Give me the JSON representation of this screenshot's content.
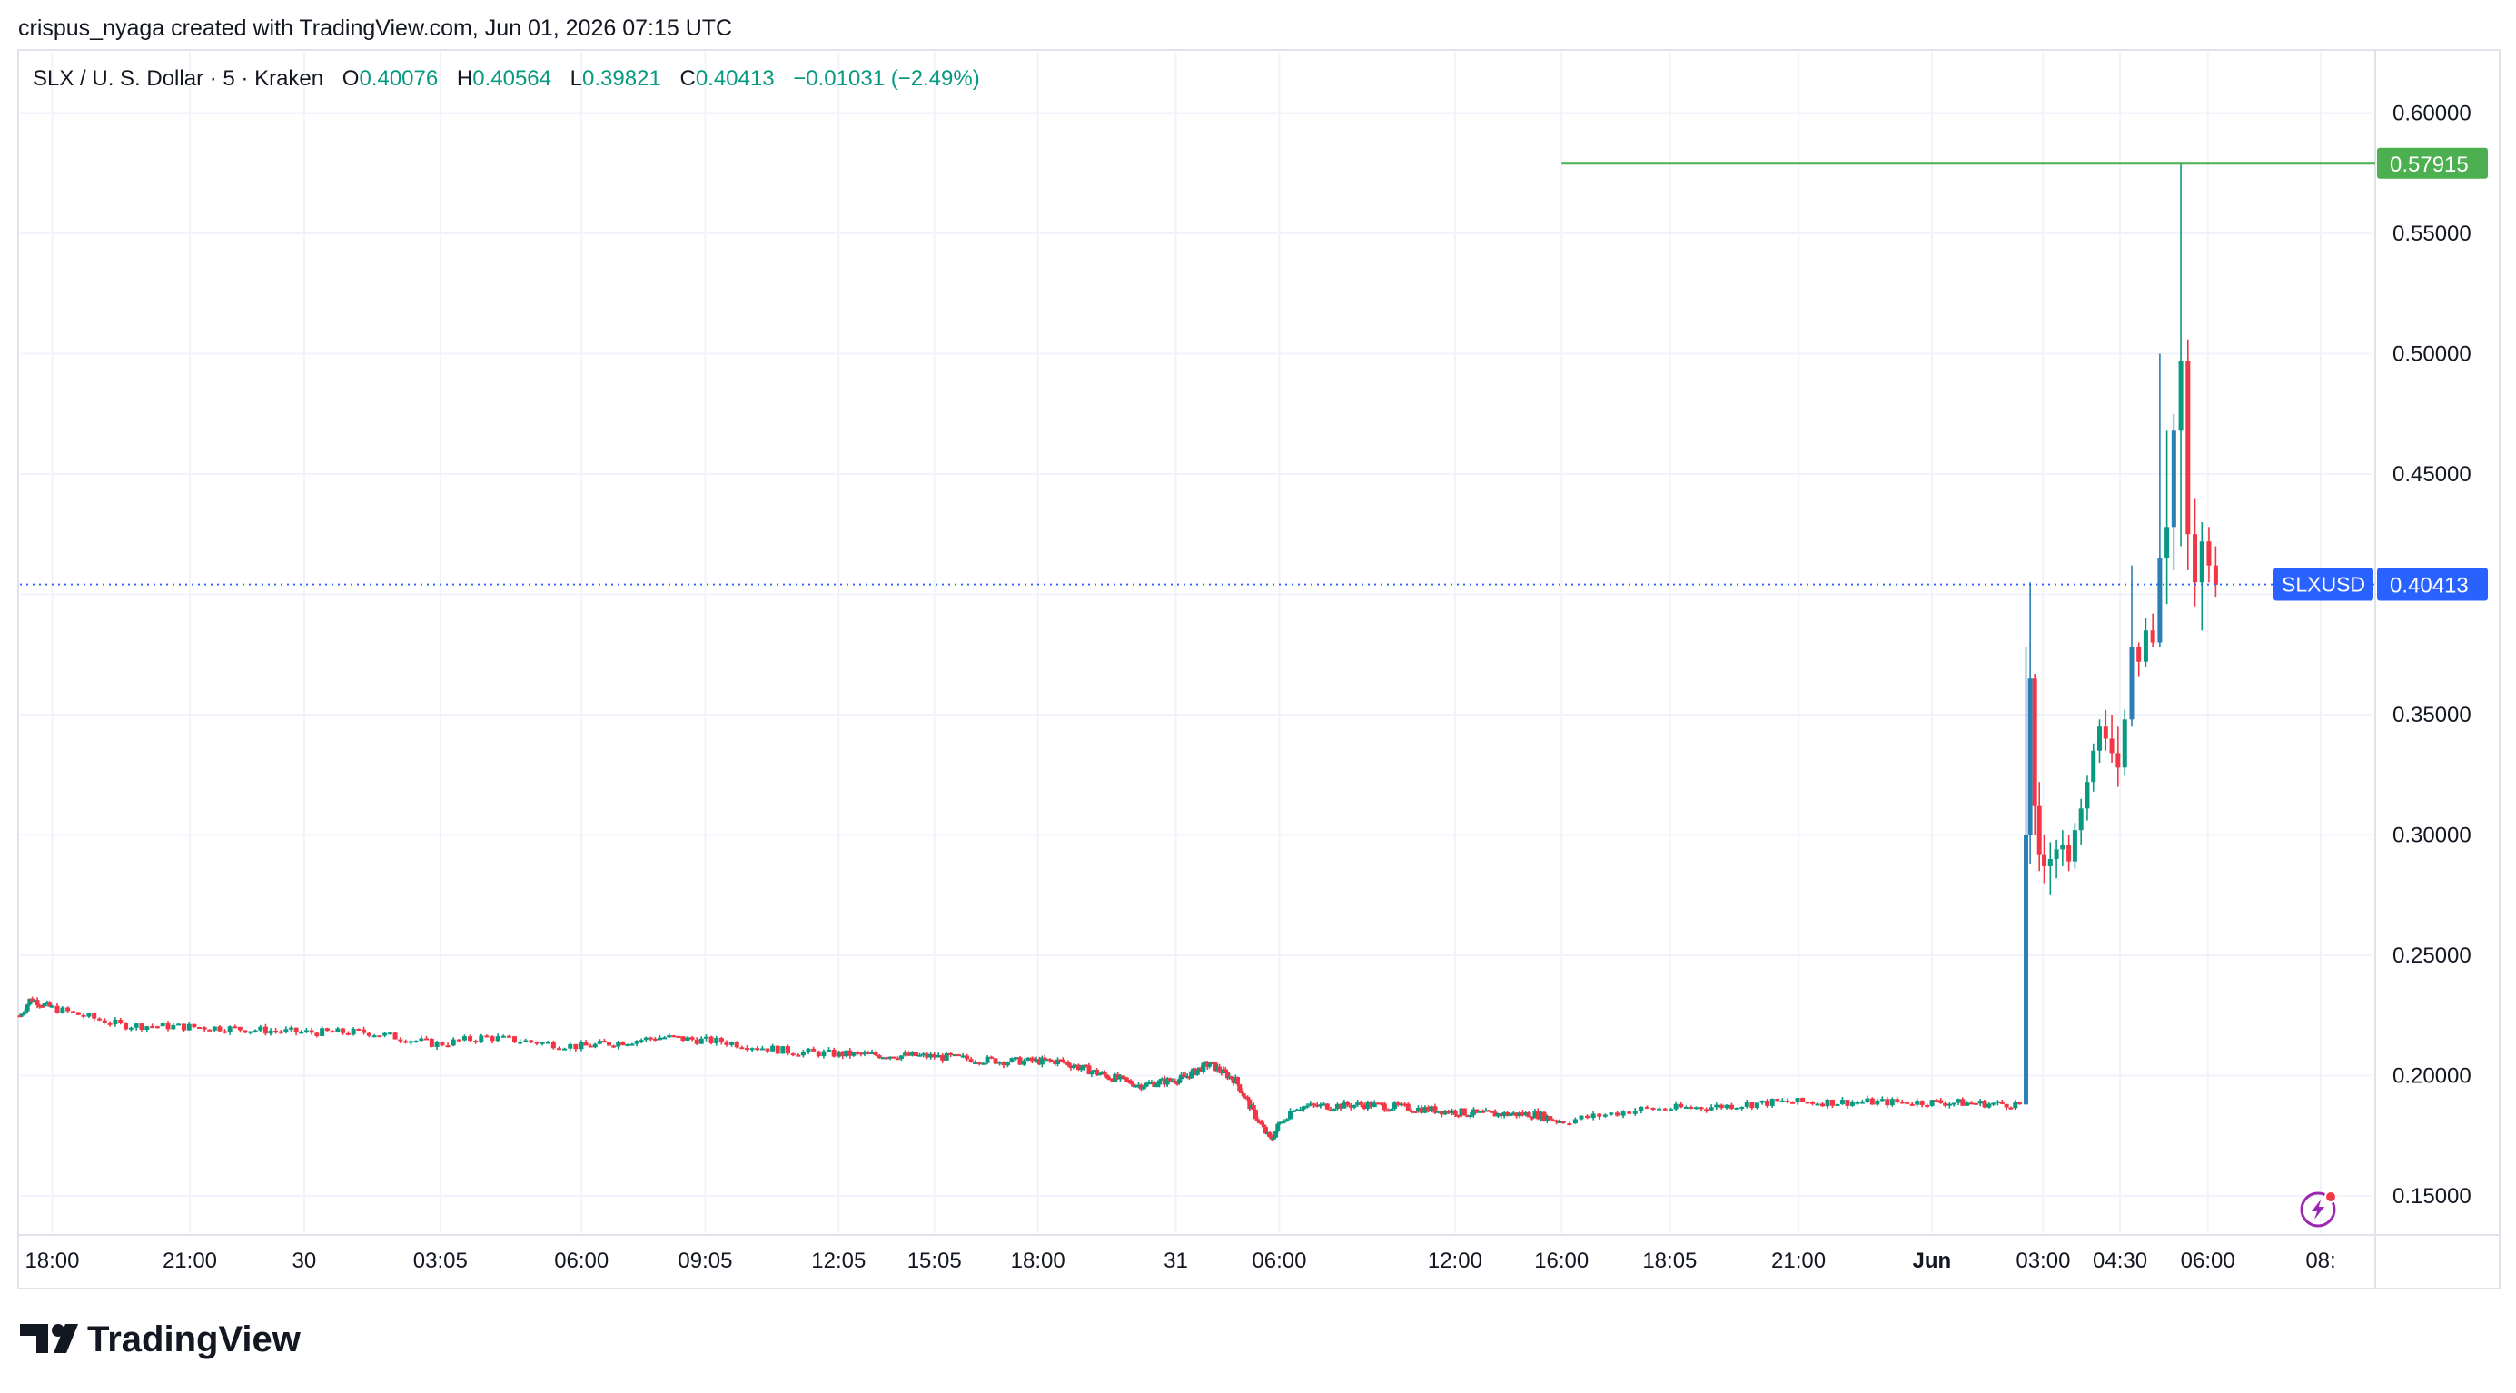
{
  "header": {
    "caption": "crispus_nyaga created with TradingView.com, Jun 01, 2026 07:15 UTC"
  },
  "legend": {
    "symbol_line": "SLX / U. S. Dollar · 5 · Kraken",
    "o_label": "O",
    "o_value": "0.40076",
    "h_label": "H",
    "h_value": "0.40564",
    "l_label": "L",
    "l_value": "0.39821",
    "c_label": "C",
    "c_value": "0.40413",
    "change": "−0.01031 (−2.49%)"
  },
  "brand": {
    "name": "TradingView"
  },
  "colors": {
    "up": "#089981",
    "down": "#f23645",
    "up_big": "#2a7fb5",
    "grid": "#f0f3fa",
    "axis_text": "#131722",
    "level_line": "#4caf50",
    "price_tag": "#2962ff",
    "accent_icon": "#9c27b0"
  },
  "chart_data": {
    "type": "candlestick",
    "symbol": "SLXUSD",
    "interval": "5",
    "exchange": "Kraken",
    "y_axis": {
      "ticks": [
        0.15,
        0.2,
        0.25,
        0.3,
        0.35,
        0.4,
        0.45,
        0.5,
        0.55,
        0.6
      ],
      "tick_labels": [
        "0.15000",
        "0.20000",
        "0.25000",
        "0.30000",
        "0.35000",
        "",
        "0.45000",
        "0.50000",
        "0.55000",
        "0.60000"
      ],
      "range": [
        0.13,
        0.62
      ]
    },
    "x_axis": {
      "ticks": [
        {
          "label": "18:00",
          "t": 1.5
        },
        {
          "label": "21:00",
          "t": 4.5
        },
        {
          "label": "30",
          "t": 7.08
        },
        {
          "label": "03:05",
          "t": 10.08
        },
        {
          "label": "06:00",
          "t": 13.0
        },
        {
          "label": "09:05",
          "t": 16.08
        },
        {
          "label": "12:05",
          "t": 19.08
        },
        {
          "label": "15:05",
          "t": 22.08
        },
        {
          "label": "18:00",
          "t": 25.0
        },
        {
          "label": "31",
          "t": 31.08
        },
        {
          "label": "06:00",
          "t": 37.0
        },
        {
          "label": "12:00",
          "t": 43.0
        },
        {
          "label": "16:00",
          "t": 47.0
        },
        {
          "label": "18:05",
          "t": 49.08
        },
        {
          "label": "21:00",
          "t": 52.0
        },
        {
          "label": "Jun",
          "t": 55.08,
          "bold": true
        },
        {
          "label": "03:00",
          "t": 58.0
        },
        {
          "label": "04:30",
          "t": 59.5
        },
        {
          "label": "06:00",
          "t": 61.0
        },
        {
          "label": "08:",
          "t": 63.0
        }
      ],
      "anchors": [
        [
          0.0,
          0.0
        ],
        [
          1.5,
          0.0137
        ],
        [
          4.5,
          0.0722
        ],
        [
          7.08,
          0.1208
        ],
        [
          10.08,
          0.1787
        ],
        [
          13.0,
          0.2387
        ],
        [
          16.08,
          0.2913
        ],
        [
          19.08,
          0.348
        ],
        [
          22.08,
          0.3887
        ],
        [
          25.0,
          0.4327
        ],
        [
          31.08,
          0.4913
        ],
        [
          37.0,
          0.5353
        ],
        [
          43.0,
          0.61
        ],
        [
          47.0,
          0.6553
        ],
        [
          49.08,
          0.7013
        ],
        [
          52.0,
          0.756
        ],
        [
          55.08,
          0.8127
        ],
        [
          58.0,
          0.86
        ],
        [
          59.5,
          0.8927
        ],
        [
          61.0,
          0.93
        ],
        [
          63.0,
          0.978
        ],
        [
          63.5,
          1.0
        ]
      ]
    },
    "last_price": 0.40413,
    "last_price_tag": "0.40413",
    "symbol_tag": "SLXUSD",
    "level_line": {
      "price": 0.57915,
      "label": "0.57915",
      "from_t": 47.0
    },
    "trend_anchors": [
      [
        0.0,
        0.225
      ],
      [
        0.5,
        0.232
      ],
      [
        1.5,
        0.228
      ],
      [
        3.0,
        0.221
      ],
      [
        5.0,
        0.22
      ],
      [
        7.0,
        0.218
      ],
      [
        8.5,
        0.218
      ],
      [
        10.0,
        0.213
      ],
      [
        11.0,
        0.216
      ],
      [
        13.0,
        0.212
      ],
      [
        15.0,
        0.216
      ],
      [
        16.5,
        0.214
      ],
      [
        18.0,
        0.21
      ],
      [
        19.0,
        0.209
      ],
      [
        22.0,
        0.208
      ],
      [
        24.0,
        0.206
      ],
      [
        26.0,
        0.206
      ],
      [
        28.0,
        0.2
      ],
      [
        29.5,
        0.196
      ],
      [
        31.5,
        0.199
      ],
      [
        33.0,
        0.205
      ],
      [
        34.5,
        0.198
      ],
      [
        35.5,
        0.185
      ],
      [
        36.5,
        0.173
      ],
      [
        37.5,
        0.187
      ],
      [
        40.0,
        0.188
      ],
      [
        42.0,
        0.186
      ],
      [
        44.0,
        0.184
      ],
      [
        46.0,
        0.184
      ],
      [
        47.0,
        0.181
      ],
      [
        48.5,
        0.186
      ],
      [
        50.0,
        0.187
      ],
      [
        51.5,
        0.189
      ],
      [
        53.0,
        0.189
      ],
      [
        55.0,
        0.189
      ],
      [
        57.5,
        0.188
      ]
    ],
    "volatile_candles": [
      [
        57.55,
        0.188,
        0.378,
        0.188,
        0.3
      ],
      [
        57.66,
        0.3,
        0.405,
        0.288,
        0.365
      ],
      [
        57.78,
        0.365,
        0.367,
        0.3,
        0.312
      ],
      [
        57.9,
        0.312,
        0.322,
        0.285,
        0.292
      ],
      [
        58.02,
        0.292,
        0.3,
        0.28,
        0.287
      ],
      [
        58.14,
        0.287,
        0.297,
        0.275,
        0.29
      ],
      [
        58.26,
        0.29,
        0.298,
        0.282,
        0.294
      ],
      [
        58.38,
        0.294,
        0.302,
        0.287,
        0.296
      ],
      [
        58.5,
        0.296,
        0.3,
        0.285,
        0.289
      ],
      [
        58.62,
        0.289,
        0.305,
        0.286,
        0.302
      ],
      [
        58.74,
        0.302,
        0.315,
        0.296,
        0.311
      ],
      [
        58.86,
        0.311,
        0.325,
        0.306,
        0.322
      ],
      [
        58.98,
        0.322,
        0.338,
        0.318,
        0.335
      ],
      [
        59.1,
        0.335,
        0.348,
        0.33,
        0.345
      ],
      [
        59.22,
        0.345,
        0.352,
        0.335,
        0.34
      ],
      [
        59.34,
        0.34,
        0.35,
        0.33,
        0.334
      ],
      [
        59.46,
        0.334,
        0.345,
        0.32,
        0.328
      ],
      [
        59.58,
        0.328,
        0.352,
        0.325,
        0.348
      ],
      [
        59.7,
        0.348,
        0.412,
        0.345,
        0.378
      ],
      [
        59.82,
        0.378,
        0.38,
        0.366,
        0.372
      ],
      [
        59.94,
        0.372,
        0.39,
        0.37,
        0.385
      ],
      [
        60.06,
        0.385,
        0.392,
        0.378,
        0.38
      ],
      [
        60.18,
        0.38,
        0.5,
        0.378,
        0.415
      ],
      [
        60.3,
        0.415,
        0.468,
        0.396,
        0.428
      ],
      [
        60.42,
        0.428,
        0.475,
        0.41,
        0.468
      ],
      [
        60.54,
        0.468,
        0.579,
        0.42,
        0.497
      ],
      [
        60.66,
        0.497,
        0.506,
        0.41,
        0.425
      ],
      [
        60.78,
        0.425,
        0.44,
        0.395,
        0.405
      ],
      [
        60.9,
        0.405,
        0.43,
        0.385,
        0.422
      ],
      [
        61.02,
        0.422,
        0.428,
        0.405,
        0.412
      ],
      [
        61.14,
        0.412,
        0.42,
        0.399,
        0.404
      ]
    ]
  }
}
